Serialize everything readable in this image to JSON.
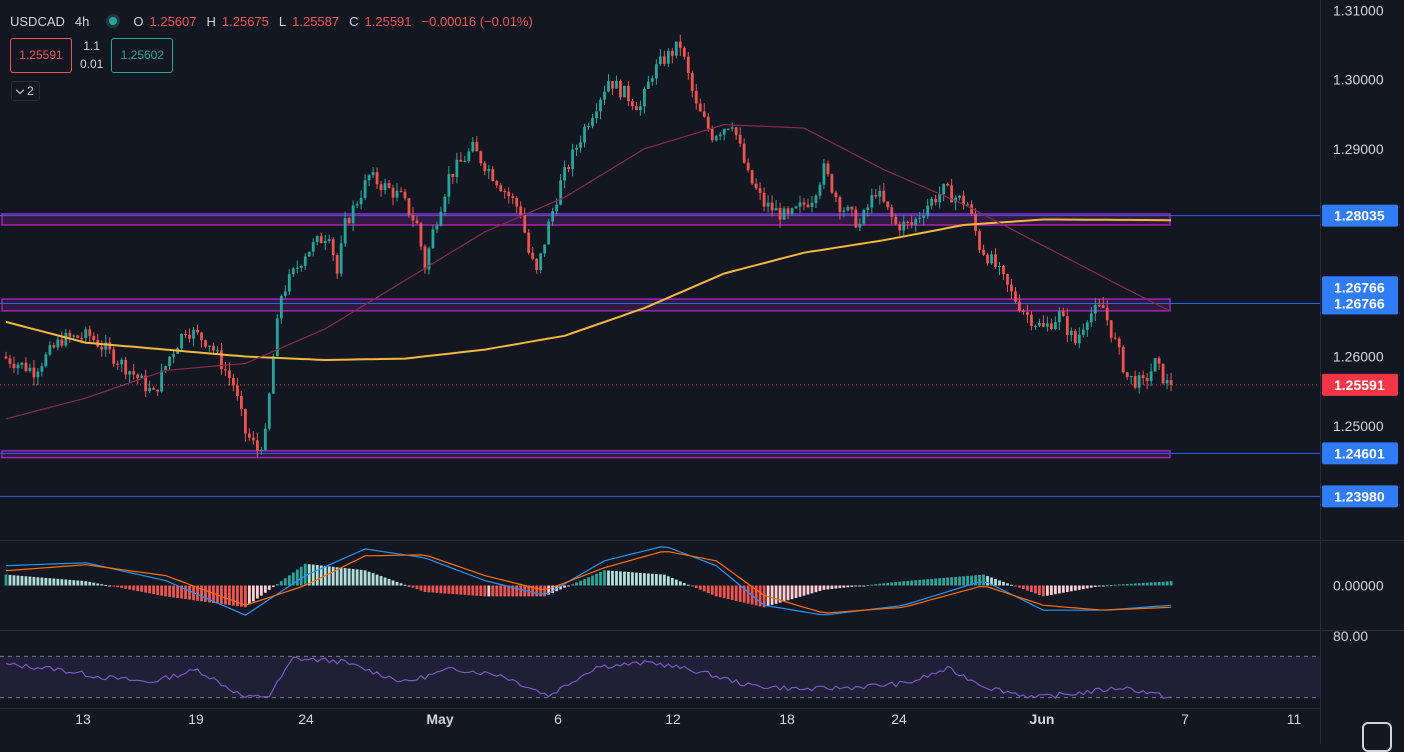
{
  "header": {
    "symbol": "USDCAD",
    "timeframe": "4h",
    "ohlc": {
      "o_label": "O",
      "o": "1.25607",
      "h_label": "H",
      "h": "1.25675",
      "l_label": "L",
      "l": "1.25587",
      "c_label": "C",
      "c": "1.25591",
      "change": "−0.00016 (−0.01%)"
    },
    "sell_price": "1.25591",
    "lot": "1.1",
    "spread": "0.01",
    "buy_price": "1.25602",
    "indicators_toggle_label": "2"
  },
  "colors": {
    "background": "#131722",
    "bull": "#26a69a",
    "bear": "#ef5350",
    "ma_slow": "#f6b83a",
    "ma_fast": "#8a2b4c",
    "zone": "#9c27b0",
    "hline": "#2962ff",
    "label_blue": "#2f7cf6",
    "label_red": "#f23645",
    "macd": "#2196f3",
    "signal": "#ff6d00",
    "rsi": "#7e57c2"
  },
  "chart_data": [
    {
      "type": "candlestick",
      "symbol": "USDCAD",
      "interval": "4h",
      "y_ticks": [
        "1.31000",
        "1.30000",
        "1.29000",
        "1.26000",
        "1.25000"
      ],
      "ylim": [
        1.2335,
        1.3115
      ],
      "x_ticks": [
        "13",
        "19",
        "24",
        "May",
        "6",
        "12",
        "18",
        "24",
        "Jun",
        "7",
        "11"
      ],
      "path_points": [
        [
          0,
          1.26
        ],
        [
          8,
          1.258
        ],
        [
          15,
          1.2625
        ],
        [
          22,
          1.263
        ],
        [
          30,
          1.259
        ],
        [
          34,
          1.257
        ],
        [
          38,
          1.2545
        ],
        [
          42,
          1.26
        ],
        [
          46,
          1.264
        ],
        [
          52,
          1.262
        ],
        [
          58,
          1.256
        ],
        [
          61,
          1.249
        ],
        [
          64,
          1.2465
        ],
        [
          66,
          1.2485
        ],
        [
          68,
          1.26
        ],
        [
          70,
          1.269
        ],
        [
          76,
          1.275
        ],
        [
          82,
          1.278
        ],
        [
          84,
          1.272
        ],
        [
          86,
          1.279
        ],
        [
          92,
          1.286
        ],
        [
          100,
          1.283
        ],
        [
          104,
          1.279
        ],
        [
          106,
          1.273
        ],
        [
          108,
          1.278
        ],
        [
          112,
          1.286
        ],
        [
          118,
          1.29
        ],
        [
          122,
          1.287
        ],
        [
          126,
          1.284
        ],
        [
          130,
          1.281
        ],
        [
          132,
          1.275
        ],
        [
          134,
          1.272
        ],
        [
          137,
          1.279
        ],
        [
          140,
          1.285
        ],
        [
          146,
          1.293
        ],
        [
          152,
          1.3
        ],
        [
          156,
          1.298
        ],
        [
          160,
          1.296
        ],
        [
          163,
          1.301
        ],
        [
          166,
          1.303
        ],
        [
          170,
          1.305
        ],
        [
          174,
          1.296
        ],
        [
          178,
          1.292
        ],
        [
          183,
          1.294
        ],
        [
          187,
          1.286
        ],
        [
          191,
          1.282
        ],
        [
          197,
          1.28
        ],
        [
          203,
          1.283
        ],
        [
          206,
          1.287
        ],
        [
          210,
          1.282
        ],
        [
          215,
          1.279
        ],
        [
          219,
          1.284
        ],
        [
          224,
          1.279
        ],
        [
          228,
          1.279
        ],
        [
          232,
          1.282
        ],
        [
          236,
          1.284
        ],
        [
          242,
          1.282
        ],
        [
          245,
          1.276
        ],
        [
          249,
          1.273
        ],
        [
          253,
          1.269
        ],
        [
          257,
          1.266
        ],
        [
          261,
          1.264
        ],
        [
          265,
          1.266
        ],
        [
          269,
          1.262
        ],
        [
          272,
          1.266
        ],
        [
          276,
          1.267
        ],
        [
          279,
          1.262
        ],
        [
          282,
          1.257
        ],
        [
          286,
          1.256
        ],
        [
          289,
          1.259
        ],
        [
          292,
          1.256
        ]
      ],
      "candle_count": 293,
      "last_close": 1.25591,
      "moving_averages": [
        {
          "points": [
            [
              0,
              1.265
            ],
            [
              20,
              1.262
            ],
            [
              40,
              1.261
            ],
            [
              60,
              1.26
            ],
            [
              80,
              1.2595
            ],
            [
              100,
              1.2597
            ],
            [
              120,
              1.261
            ],
            [
              140,
              1.263
            ],
            [
              160,
              1.267
            ],
            [
              180,
              1.272
            ],
            [
              200,
              1.275
            ],
            [
              220,
              1.2768
            ],
            [
              240,
              1.279
            ],
            [
              260,
              1.2798
            ],
            [
              292,
              1.2797
            ]
          ]
        },
        {
          "points": [
            [
              0,
              1.251
            ],
            [
              20,
              1.254
            ],
            [
              40,
              1.258
            ],
            [
              60,
              1.259
            ],
            [
              80,
              1.264
            ],
            [
              100,
              1.271
            ],
            [
              120,
              1.278
            ],
            [
              140,
              1.283
            ],
            [
              160,
              1.29
            ],
            [
              180,
              1.2935
            ],
            [
              200,
              1.293
            ],
            [
              220,
              1.287
            ],
            [
              240,
              1.282
            ],
            [
              260,
              1.276
            ],
            [
              280,
              1.27
            ],
            [
              292,
              1.2665
            ]
          ]
        }
      ],
      "zones": [
        {
          "low": 1.279,
          "high": 1.2806
        },
        {
          "low": 1.2666,
          "high": 1.2683
        },
        {
          "low": 1.2454,
          "high": 1.2464
        }
      ],
      "horizontal_lines": [
        {
          "price": 1.28035,
          "label": "1.28035"
        },
        {
          "price": 1.26766,
          "label": "1.26766"
        },
        {
          "price": 1.24601,
          "label": "1.24601"
        },
        {
          "price": 1.2398,
          "label": "1.23980"
        }
      ],
      "price_labels": [
        {
          "price": 1.27,
          "label": "1.26766"
        },
        {
          "price": 1.25591,
          "label": "1.25591"
        }
      ]
    },
    {
      "type": "line",
      "indicator": "MACD",
      "y_ticks": [
        "0.00000"
      ],
      "ylim": [
        -0.0045,
        0.0045
      ],
      "macd": [
        [
          0,
          0.002
        ],
        [
          20,
          0.0023
        ],
        [
          40,
          0.0005
        ],
        [
          60,
          -0.003
        ],
        [
          75,
          0.001
        ],
        [
          90,
          0.0037
        ],
        [
          105,
          0.0028
        ],
        [
          120,
          0.0005
        ],
        [
          135,
          -0.001
        ],
        [
          150,
          0.0025
        ],
        [
          165,
          0.004
        ],
        [
          178,
          0.002
        ],
        [
          190,
          -0.002
        ],
        [
          205,
          -0.003
        ],
        [
          225,
          -0.002
        ],
        [
          245,
          0.0005
        ],
        [
          260,
          -0.0025
        ],
        [
          275,
          -0.0025
        ],
        [
          292,
          -0.002
        ]
      ],
      "signal": [
        [
          0,
          0.0015
        ],
        [
          20,
          0.0021
        ],
        [
          40,
          0.001
        ],
        [
          60,
          -0.002
        ],
        [
          75,
          0.0
        ],
        [
          90,
          0.003
        ],
        [
          105,
          0.0031
        ],
        [
          120,
          0.001
        ],
        [
          135,
          -0.0005
        ],
        [
          150,
          0.0018
        ],
        [
          165,
          0.0035
        ],
        [
          178,
          0.0025
        ],
        [
          190,
          -0.001
        ],
        [
          205,
          -0.0028
        ],
        [
          225,
          -0.0022
        ],
        [
          245,
          0.0
        ],
        [
          260,
          -0.002
        ],
        [
          275,
          -0.0025
        ],
        [
          292,
          -0.0022
        ]
      ]
    },
    {
      "type": "line",
      "indicator": "RSI",
      "y_ticks": [
        "80.00"
      ],
      "ylim": [
        20,
        80
      ],
      "bands": [
        70,
        30
      ],
      "values": [
        [
          0,
          62
        ],
        [
          12,
          58
        ],
        [
          24,
          50
        ],
        [
          36,
          45
        ],
        [
          48,
          57
        ],
        [
          60,
          30
        ],
        [
          66,
          32
        ],
        [
          72,
          68
        ],
        [
          84,
          65
        ],
        [
          100,
          45
        ],
        [
          112,
          58
        ],
        [
          124,
          52
        ],
        [
          136,
          32
        ],
        [
          148,
          60
        ],
        [
          162,
          64
        ],
        [
          174,
          55
        ],
        [
          186,
          42
        ],
        [
          200,
          38
        ],
        [
          212,
          40
        ],
        [
          226,
          44
        ],
        [
          236,
          58
        ],
        [
          246,
          40
        ],
        [
          258,
          30
        ],
        [
          270,
          35
        ],
        [
          280,
          40
        ],
        [
          292,
          30
        ]
      ]
    }
  ]
}
